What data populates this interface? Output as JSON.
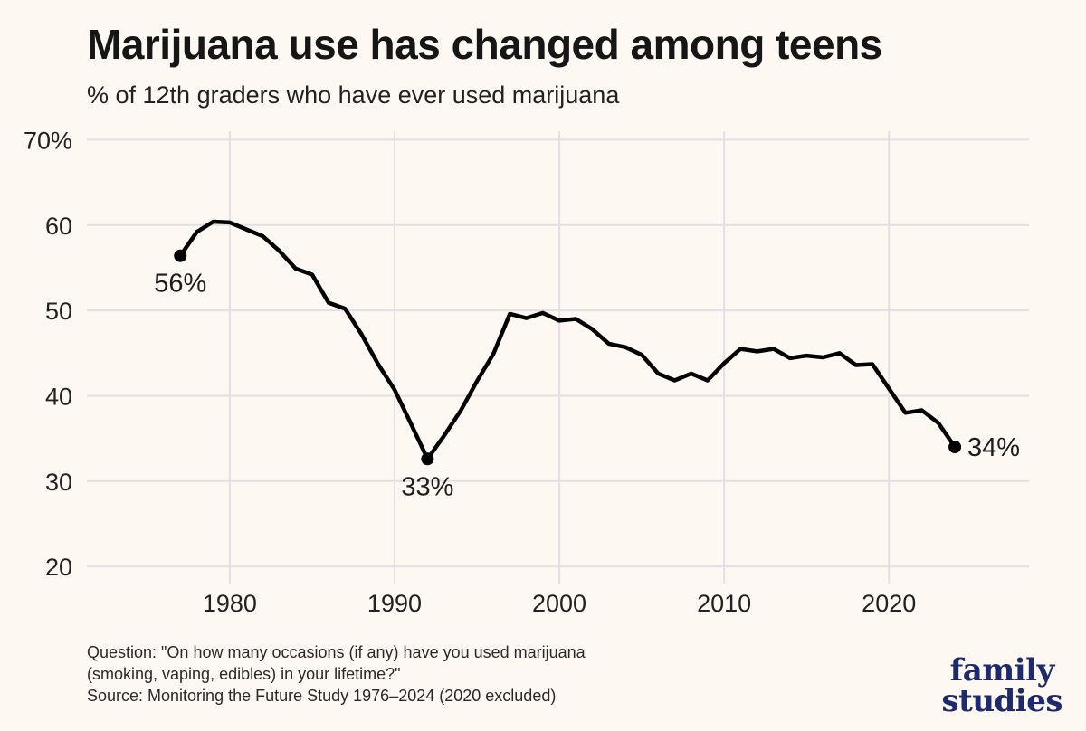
{
  "header": {
    "title": "Marijuana use has changed among teens",
    "subtitle": "% of 12th graders who have ever used marijuana"
  },
  "notes": {
    "question_line1": "Question: \"On how many occasions (if any) have you used marijuana",
    "question_line2": "(smoking, vaping, edibles) in your lifetime?\"",
    "source": "Source: Monitoring the Future Study 1976–2024 (2020 excluded)"
  },
  "logo": {
    "line1": "family",
    "line2": "studies"
  },
  "colors": {
    "background": "#fdf8f2",
    "line": "#000000",
    "grid": "#e2e0e6",
    "logo": "#1e2a6e"
  },
  "chart_data": {
    "type": "line",
    "title": "Marijuana use has changed among teens",
    "subtitle": "% of 12th graders who have ever used marijuana",
    "xlabel": "",
    "ylabel": "",
    "xlim": [
      1971,
      2028.5
    ],
    "ylim": [
      18,
      71
    ],
    "x_ticks": [
      1980,
      1990,
      2000,
      2010,
      2020
    ],
    "x_tick_labels": [
      "1980",
      "1990",
      "2000",
      "2010",
      "2020"
    ],
    "y_ticks": [
      20,
      30,
      40,
      50,
      60,
      70
    ],
    "y_tick_labels": [
      "20",
      "30",
      "40",
      "50",
      "60",
      "70%"
    ],
    "grid": true,
    "series": [
      {
        "x": [
          1977,
          1978,
          1979,
          1980,
          1981,
          1982,
          1983,
          1984,
          1985,
          1986,
          1987,
          1988,
          1989,
          1990,
          1991,
          1992,
          1993,
          1994,
          1995,
          1996,
          1997,
          1998,
          1999,
          2000,
          2001,
          2002,
          2003,
          2004,
          2005,
          2006,
          2007,
          2008,
          2009,
          2010,
          2011,
          2012,
          2013,
          2014,
          2015,
          2016,
          2017,
          2018,
          2019,
          2021,
          2022,
          2023,
          2024
        ],
        "y": [
          56.4,
          59.2,
          60.4,
          60.3,
          59.5,
          58.7,
          57.0,
          54.9,
          54.2,
          50.9,
          50.2,
          47.2,
          43.7,
          40.7,
          36.7,
          32.6,
          35.3,
          38.2,
          41.7,
          44.9,
          49.6,
          49.1,
          49.7,
          48.8,
          49.0,
          47.8,
          46.1,
          45.7,
          44.8,
          42.6,
          41.8,
          42.6,
          41.8,
          43.8,
          45.5,
          45.2,
          45.5,
          44.4,
          44.7,
          44.5,
          45.0,
          43.6,
          43.7,
          38.0,
          38.3,
          36.8,
          34.0
        ]
      }
    ],
    "annotations": [
      {
        "x": 1977,
        "y": 56.4,
        "label": "56%",
        "position": "below"
      },
      {
        "x": 1992,
        "y": 32.6,
        "label": "33%",
        "position": "below"
      },
      {
        "x": 2024,
        "y": 34.0,
        "label": "34%",
        "position": "right"
      }
    ]
  }
}
